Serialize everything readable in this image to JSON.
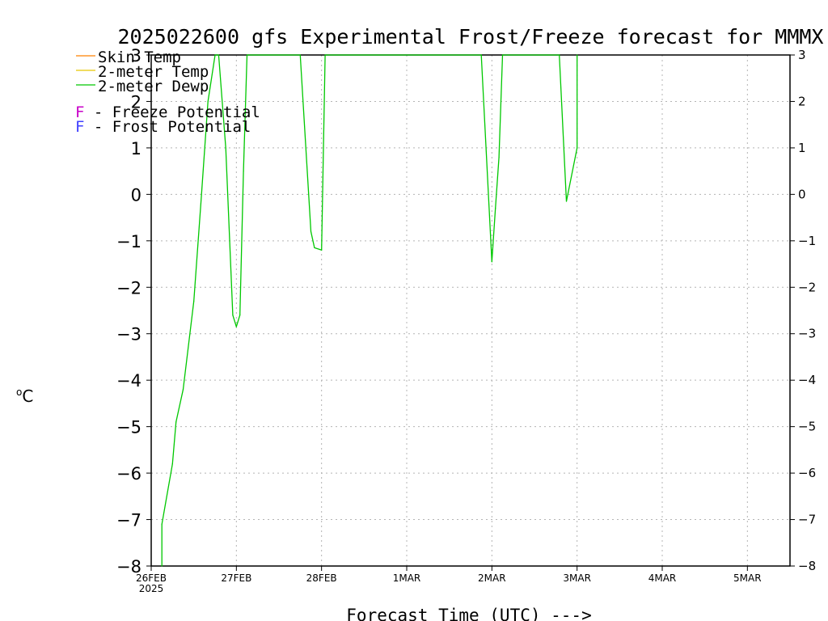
{
  "chart_data": {
    "type": "line",
    "title": "2025022600 gfs Experimental Frost/Freeze forecast for MMMX",
    "xlabel": "Forecast Time (UTC) --->",
    "ylabel": "°C",
    "ylabel_superscript": "o",
    "ylabel_unit": "C",
    "ylim": [
      -8,
      3
    ],
    "yticks": [
      -8,
      -7,
      -6,
      -5,
      -4,
      -3,
      -2,
      -1,
      0,
      1,
      2,
      3
    ],
    "ytick_labels": [
      "−8",
      "−7",
      "−6",
      "−5",
      "−4",
      "−3",
      "−2",
      "−1",
      "0",
      "1",
      "2",
      "3"
    ],
    "xlim": [
      "2025-02-26T00",
      "2025-03-05T12"
    ],
    "xticks": [
      {
        "label": "26FEB",
        "sublabel": "2025",
        "date": "2025-02-26T00"
      },
      {
        "label": "27FEB",
        "date": "2025-02-27T00"
      },
      {
        "label": "28FEB",
        "date": "2025-02-28T00"
      },
      {
        "label": "1MAR",
        "date": "2025-03-01T00"
      },
      {
        "label": "2MAR",
        "date": "2025-03-02T00"
      },
      {
        "label": "3MAR",
        "date": "2025-03-03T00"
      },
      {
        "label": "4MAR",
        "date": "2025-03-04T00"
      },
      {
        "label": "5MAR",
        "date": "2025-03-05T00"
      }
    ],
    "grid": true,
    "legend": {
      "placement": "top-left",
      "entries": [
        {
          "label": "Skin Temp",
          "color": "#ff8000"
        },
        {
          "label": "2-meter Temp",
          "color": "#e6c800"
        },
        {
          "label": "2-meter Dewp",
          "color": "#00c800"
        }
      ],
      "notes": [
        {
          "letter": "F",
          "text": " - Freeze Potential",
          "color": "#c800c8"
        },
        {
          "letter": "F",
          "text": " - Frost Potential",
          "color": "#4040ff"
        }
      ]
    },
    "series": [
      {
        "name": "2-meter Dewp",
        "color": "#00c800",
        "points": [
          {
            "x": "2025-02-26T03",
            "y": -8.0
          },
          {
            "x": "2025-02-26T03",
            "y": -7.1
          },
          {
            "x": "2025-02-26T06",
            "y": -5.8
          },
          {
            "x": "2025-02-26T07",
            "y": -4.9
          },
          {
            "x": "2025-02-26T09",
            "y": -4.2
          },
          {
            "x": "2025-02-26T12",
            "y": -2.3
          },
          {
            "x": "2025-02-26T14",
            "y": -0.2
          },
          {
            "x": "2025-02-26T16",
            "y": 2.0
          },
          {
            "x": "2025-02-26T18",
            "y": 3.0
          },
          {
            "x": "2025-02-26T19",
            "y": 3.0
          },
          {
            "x": "2025-02-26T21",
            "y": 1.0
          },
          {
            "x": "2025-02-26T23",
            "y": -2.6
          },
          {
            "x": "2025-02-27T00",
            "y": -2.85
          },
          {
            "x": "2025-02-27T01",
            "y": -2.6
          },
          {
            "x": "2025-02-27T02",
            "y": 0.5
          },
          {
            "x": "2025-02-27T03",
            "y": 3.0
          },
          {
            "x": "2025-02-27T18",
            "y": 3.0
          },
          {
            "x": "2025-02-27T21",
            "y": -0.8
          },
          {
            "x": "2025-02-27T22",
            "y": -1.15
          },
          {
            "x": "2025-02-28T00",
            "y": -1.2
          },
          {
            "x": "2025-02-28T01",
            "y": 3.0
          },
          {
            "x": "2025-03-01T21",
            "y": 3.0
          },
          {
            "x": "2025-03-02T00",
            "y": -1.45
          },
          {
            "x": "2025-03-02T01",
            "y": -0.3
          },
          {
            "x": "2025-03-02T02",
            "y": 0.8
          },
          {
            "x": "2025-03-02T03",
            "y": 3.0
          },
          {
            "x": "2025-03-02T19",
            "y": 3.0
          },
          {
            "x": "2025-03-02T21",
            "y": -0.15
          },
          {
            "x": "2025-03-03T00",
            "y": 1.0
          },
          {
            "x": "2025-03-03T00",
            "y": 3.0
          }
        ]
      }
    ]
  }
}
